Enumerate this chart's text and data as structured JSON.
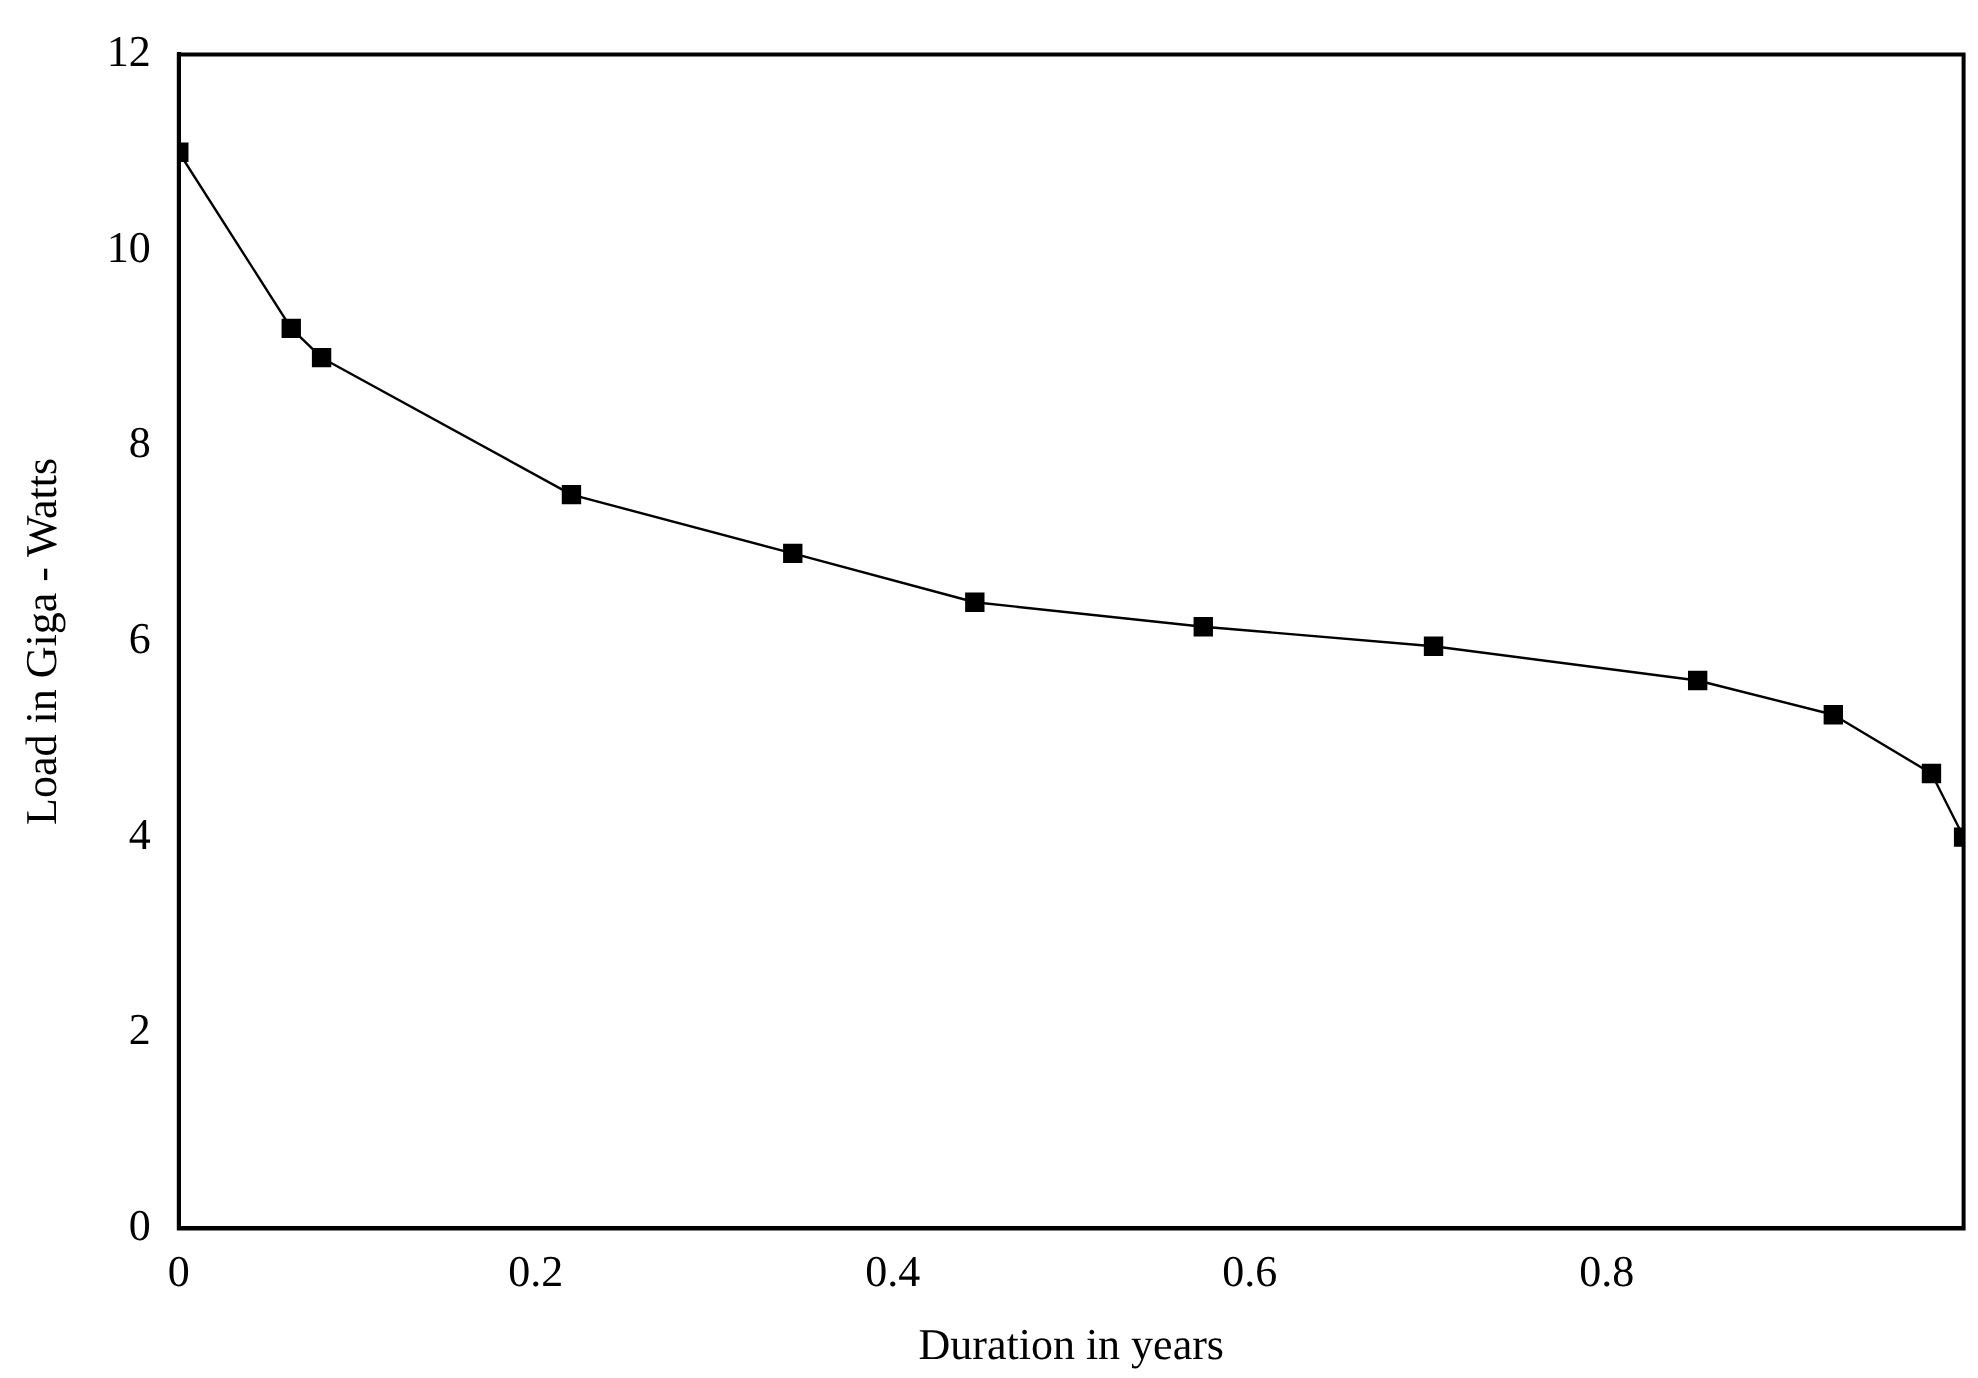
{
  "chart_data": {
    "type": "line",
    "xlabel": "Duration in years",
    "ylabel": "Load in Giga - Watts",
    "x": [
      0,
      0.063,
      0.08,
      0.22,
      0.344,
      0.446,
      0.574,
      0.703,
      0.851,
      0.927,
      0.982,
      1.0
    ],
    "series": [
      {
        "color": "#000000",
        "values": [
          11,
          9.2,
          8.9,
          7.5,
          6.9,
          6.4,
          6.15,
          5.95,
          5.6,
          5.25,
          4.65,
          4.0
        ]
      }
    ],
    "xlim": [
      0,
      1
    ],
    "xticks": [
      0,
      0.2,
      0.4,
      0.6,
      0.8
    ],
    "ylim": [
      0,
      12
    ],
    "yticks": [
      0,
      2,
      4,
      6,
      8,
      10,
      12
    ],
    "grid": false,
    "legend": false,
    "marker": "square",
    "line_style": "solid"
  }
}
